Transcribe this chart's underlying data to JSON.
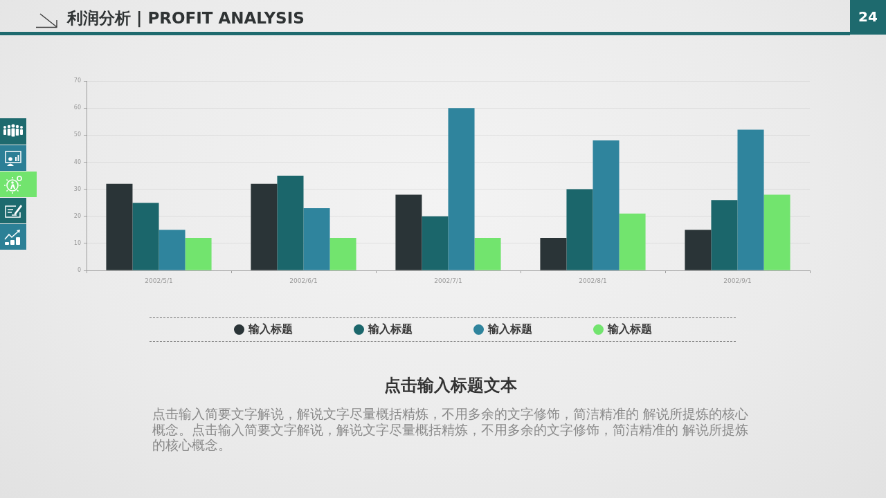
{
  "chart_data": {
    "type": "bar",
    "title": "利润分析 | PROFIT ANALYSIS",
    "subtitle": "点击输入标题文本",
    "categories": [
      "2002/5/1",
      "2002/6/1",
      "2002/7/1",
      "2002/8/1",
      "2002/9/1"
    ],
    "series": [
      {
        "name": "输入标题",
        "color": "#2a3437",
        "values": [
          32,
          32,
          28,
          12,
          15
        ]
      },
      {
        "name": "输入标题",
        "color": "#1b666b",
        "values": [
          25,
          35,
          20,
          30,
          26
        ]
      },
      {
        "name": "输入标题",
        "color": "#2f849d",
        "values": [
          15,
          23,
          60,
          48,
          52
        ]
      },
      {
        "name": "输入标题",
        "color": "#72e46e",
        "values": [
          12,
          12,
          12,
          21,
          28
        ]
      }
    ],
    "ylim": [
      0,
      70
    ],
    "yticks": [
      0,
      10,
      20,
      30,
      40,
      50,
      60,
      70
    ],
    "grid": "y",
    "legend": "bottom",
    "annotations": [
      "24",
      "点击输入简要文字解说，解说文字尽量概括精炼，不用多余的文字修饰，简洁精准的 解说所提炼的核心概念。点击输入简要文字解说，解说文字尽量概括精炼，不用多余的文字修饰，简洁精准的 解说所提炼的核心概念。"
    ]
  }
}
